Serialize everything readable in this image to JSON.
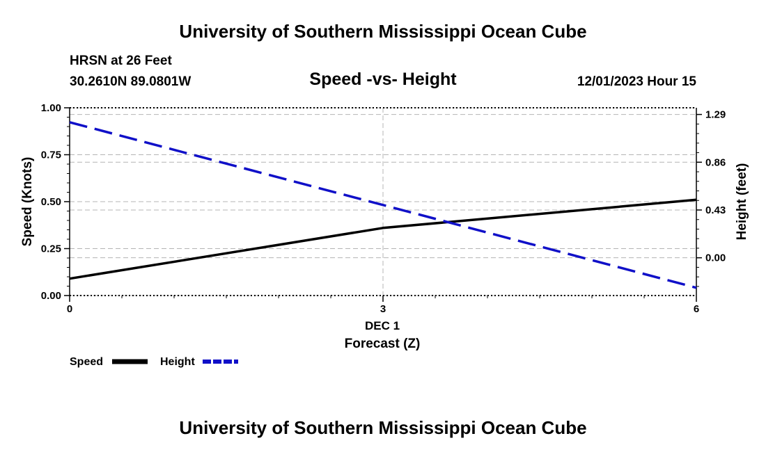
{
  "header": {
    "title": "University of Southern Mississippi Ocean Cube",
    "station": "HRSN at 26 Feet",
    "location": "30.2610N  89.0801W",
    "chart_title": "Speed -vs- Height",
    "datetime": "12/01/2023 Hour 15"
  },
  "footer": {
    "title": "University of Southern Mississippi Ocean Cube"
  },
  "legend": {
    "speed_label": "Speed",
    "height_label": "Height"
  },
  "colors": {
    "speed": "#000000",
    "height": "#1010c8",
    "grid": "#b4b4b4"
  },
  "chart_data": {
    "type": "line",
    "title": "Speed -vs- Height",
    "xlabel": "Forecast (Z)",
    "x_date_label": "DEC 1",
    "ylabel_left": "Speed (Knots)",
    "ylabel_right": "Height (feet)",
    "xlim": [
      0,
      6
    ],
    "x_ticks": [
      0,
      3,
      6
    ],
    "ylim_left": [
      0,
      1
    ],
    "y_ticks_left": [
      "0.00",
      "0.25",
      "0.50",
      "0.75",
      "1.00"
    ],
    "ylim_right": [
      -0.34,
      1.35
    ],
    "y_ticks_right": [
      "0.00",
      "0.43",
      "0.86",
      "1.29"
    ],
    "grid": true,
    "series": [
      {
        "name": "Speed",
        "axis": "left",
        "style": "solid",
        "x": [
          0,
          3,
          6
        ],
        "values": [
          0.09,
          0.36,
          0.51
        ]
      },
      {
        "name": "Height",
        "axis": "right",
        "style": "dashed",
        "x": [
          0,
          6
        ],
        "values": [
          1.22,
          -0.27
        ]
      }
    ]
  }
}
